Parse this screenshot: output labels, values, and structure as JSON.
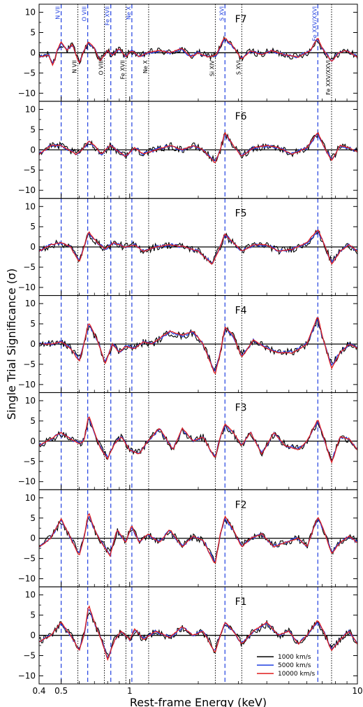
{
  "chart_data": {
    "type": "line",
    "xlabel": "Rest-frame Energy (keV)",
    "ylabel": "Single Trial Significance (σ)",
    "xscale": "log",
    "xlim": [
      0.4,
      10
    ],
    "ylim": [
      -12,
      12
    ],
    "x_ticks": [
      {
        "value": 0.4,
        "label": "0.4"
      },
      {
        "value": 0.5,
        "label": "0.5"
      },
      {
        "value": 1,
        "label": "1"
      },
      {
        "value": 10,
        "label": "10"
      }
    ],
    "y_ticks": [
      10,
      5,
      0,
      -5,
      -10
    ],
    "legend": {
      "placement": "bottom-right",
      "entries": [
        {
          "label": "1000 km/s",
          "color": "#000000"
        },
        {
          "label": "5000 km/s",
          "color": "#1f3fe0"
        },
        {
          "label": "10000 km/s",
          "color": "#e01f1f"
        }
      ]
    },
    "emission_lines": [
      {
        "label": "N VII",
        "energy": 0.5
      },
      {
        "label": "O VIII",
        "energy": 0.654
      },
      {
        "label": "Fe XVII",
        "energy": 0.826
      },
      {
        "label": "Ne X",
        "energy": 1.022
      },
      {
        "label": "S XVI",
        "energy": 2.62
      },
      {
        "label": "Fe XXV/XXVI",
        "energy": 6.7
      }
    ],
    "absorption_lines": [
      {
        "label": "N VII",
        "energy": 0.592
      },
      {
        "label": "O VIII",
        "energy": 0.774
      },
      {
        "label": "Fe XVII",
        "energy": 0.962
      },
      {
        "label": "Ne X",
        "energy": 1.211
      },
      {
        "label": "Si XIV",
        "energy": 2.377
      },
      {
        "label": "S XVI",
        "energy": 3.106
      },
      {
        "label": "Fe XXV/XXVI",
        "energy": 7.7
      }
    ],
    "panels": [
      {
        "name": "F7",
        "curve_points": [
          [
            0.4,
            -1
          ],
          [
            0.44,
            -0.5
          ],
          [
            0.46,
            -3
          ],
          [
            0.48,
            0.5
          ],
          [
            0.5,
            2.5
          ],
          [
            0.53,
            0.5
          ],
          [
            0.56,
            2
          ],
          [
            0.6,
            -2.5
          ],
          [
            0.63,
            0.5
          ],
          [
            0.66,
            2.5
          ],
          [
            0.7,
            1
          ],
          [
            0.74,
            -2
          ],
          [
            0.8,
            0.5
          ],
          [
            0.84,
            -0.5
          ],
          [
            0.9,
            1
          ],
          [
            0.96,
            -1
          ],
          [
            1.02,
            0.5
          ],
          [
            1.1,
            -1
          ],
          [
            1.2,
            0
          ],
          [
            1.35,
            0.5
          ],
          [
            1.5,
            0
          ],
          [
            1.7,
            1
          ],
          [
            1.85,
            -1
          ],
          [
            2.0,
            0
          ],
          [
            2.2,
            -1
          ],
          [
            2.4,
            -0.5
          ],
          [
            2.6,
            3.5
          ],
          [
            2.8,
            2
          ],
          [
            3.1,
            -1.5
          ],
          [
            3.4,
            0.5
          ],
          [
            3.8,
            -0.5
          ],
          [
            4.2,
            0.5
          ],
          [
            4.8,
            -0.5
          ],
          [
            5.5,
            -1
          ],
          [
            6.2,
            0.5
          ],
          [
            6.7,
            3.5
          ],
          [
            7.0,
            1
          ],
          [
            7.7,
            -2
          ],
          [
            8.3,
            0
          ],
          [
            9,
            0.5
          ],
          [
            10,
            -1
          ]
        ]
      },
      {
        "name": "F6",
        "curve_points": [
          [
            0.4,
            -1
          ],
          [
            0.45,
            1
          ],
          [
            0.5,
            1
          ],
          [
            0.54,
            0
          ],
          [
            0.58,
            -1
          ],
          [
            0.62,
            0
          ],
          [
            0.66,
            2
          ],
          [
            0.7,
            1
          ],
          [
            0.75,
            -1
          ],
          [
            0.82,
            1
          ],
          [
            0.9,
            -0.5
          ],
          [
            0.96,
            -1.5
          ],
          [
            1.05,
            0.5
          ],
          [
            1.15,
            -1
          ],
          [
            1.3,
            0
          ],
          [
            1.5,
            1
          ],
          [
            1.7,
            0
          ],
          [
            1.9,
            1
          ],
          [
            2.1,
            0
          ],
          [
            2.37,
            -3
          ],
          [
            2.5,
            0
          ],
          [
            2.62,
            4
          ],
          [
            2.85,
            1
          ],
          [
            3.1,
            -1.5
          ],
          [
            3.5,
            0.5
          ],
          [
            4.0,
            1
          ],
          [
            4.5,
            0.5
          ],
          [
            5.2,
            -1
          ],
          [
            6.0,
            0.5
          ],
          [
            6.7,
            4
          ],
          [
            7.1,
            1
          ],
          [
            7.7,
            -2.5
          ],
          [
            8.4,
            1
          ],
          [
            9.2,
            0.5
          ],
          [
            10,
            -0.5
          ]
        ]
      },
      {
        "name": "F5",
        "curve_points": [
          [
            0.4,
            -1
          ],
          [
            0.45,
            0.5
          ],
          [
            0.5,
            1
          ],
          [
            0.55,
            0
          ],
          [
            0.6,
            -3.5
          ],
          [
            0.63,
            0
          ],
          [
            0.66,
            3.5
          ],
          [
            0.72,
            1
          ],
          [
            0.78,
            -0.5
          ],
          [
            0.85,
            1
          ],
          [
            0.95,
            0
          ],
          [
            1.05,
            0.5
          ],
          [
            1.15,
            -1
          ],
          [
            1.3,
            0
          ],
          [
            1.5,
            0.5
          ],
          [
            1.75,
            0
          ],
          [
            2.0,
            -1
          ],
          [
            2.3,
            -4
          ],
          [
            2.45,
            -1
          ],
          [
            2.62,
            3
          ],
          [
            2.85,
            1
          ],
          [
            3.1,
            -1
          ],
          [
            3.5,
            0.5
          ],
          [
            4.0,
            0.5
          ],
          [
            4.5,
            -1
          ],
          [
            5.2,
            -0.5
          ],
          [
            6.0,
            1
          ],
          [
            6.7,
            4
          ],
          [
            7.1,
            1
          ],
          [
            7.7,
            -4
          ],
          [
            8.4,
            -1
          ],
          [
            9.2,
            0.5
          ],
          [
            10,
            -1
          ]
        ]
      },
      {
        "name": "F4",
        "curve_points": [
          [
            0.4,
            0
          ],
          [
            0.45,
            0
          ],
          [
            0.5,
            0.5
          ],
          [
            0.55,
            -1
          ],
          [
            0.6,
            -4
          ],
          [
            0.63,
            0
          ],
          [
            0.66,
            5
          ],
          [
            0.72,
            1
          ],
          [
            0.78,
            -4.5
          ],
          [
            0.84,
            0
          ],
          [
            0.9,
            -2
          ],
          [
            0.96,
            -0.5
          ],
          [
            1.05,
            -1
          ],
          [
            1.15,
            0.5
          ],
          [
            1.25,
            0
          ],
          [
            1.5,
            3
          ],
          [
            1.7,
            2
          ],
          [
            1.9,
            3
          ],
          [
            2.1,
            0
          ],
          [
            2.37,
            -7
          ],
          [
            2.5,
            -2
          ],
          [
            2.62,
            4
          ],
          [
            2.85,
            2
          ],
          [
            3.1,
            -3
          ],
          [
            3.5,
            1
          ],
          [
            4.0,
            -1
          ],
          [
            4.5,
            -2
          ],
          [
            5.2,
            -2
          ],
          [
            6.0,
            0
          ],
          [
            6.7,
            6.5
          ],
          [
            7.0,
            2
          ],
          [
            7.7,
            -5.5
          ],
          [
            8.4,
            -2
          ],
          [
            9.2,
            0
          ],
          [
            10,
            -1
          ]
        ]
      },
      {
        "name": "F3",
        "curve_points": [
          [
            0.4,
            -1
          ],
          [
            0.45,
            0.5
          ],
          [
            0.5,
            2
          ],
          [
            0.55,
            0.5
          ],
          [
            0.6,
            -0.5
          ],
          [
            0.63,
            0
          ],
          [
            0.66,
            6
          ],
          [
            0.7,
            2
          ],
          [
            0.75,
            -2
          ],
          [
            0.8,
            -4
          ],
          [
            0.86,
            -0.5
          ],
          [
            0.92,
            1
          ],
          [
            1.0,
            -2
          ],
          [
            1.1,
            -3
          ],
          [
            1.2,
            0
          ],
          [
            1.35,
            3
          ],
          [
            1.55,
            -2
          ],
          [
            1.7,
            3
          ],
          [
            1.9,
            0
          ],
          [
            2.1,
            1
          ],
          [
            2.37,
            -4
          ],
          [
            2.5,
            1
          ],
          [
            2.62,
            4
          ],
          [
            2.85,
            2
          ],
          [
            3.1,
            -1
          ],
          [
            3.4,
            2
          ],
          [
            3.8,
            -3
          ],
          [
            4.3,
            2
          ],
          [
            4.8,
            -1
          ],
          [
            5.5,
            -2
          ],
          [
            6.0,
            0
          ],
          [
            6.7,
            5
          ],
          [
            7.1,
            1
          ],
          [
            7.7,
            -5
          ],
          [
            8.4,
            1
          ],
          [
            9.2,
            0.5
          ],
          [
            10,
            -2
          ]
        ]
      },
      {
        "name": "F2",
        "curve_points": [
          [
            0.4,
            -2
          ],
          [
            0.45,
            0
          ],
          [
            0.5,
            4.5
          ],
          [
            0.55,
            0
          ],
          [
            0.6,
            -4
          ],
          [
            0.63,
            0
          ],
          [
            0.66,
            6
          ],
          [
            0.7,
            2
          ],
          [
            0.75,
            -1
          ],
          [
            0.82,
            -4
          ],
          [
            0.88,
            2
          ],
          [
            0.96,
            -1
          ],
          [
            1.02,
            3
          ],
          [
            1.1,
            -1
          ],
          [
            1.2,
            1
          ],
          [
            1.35,
            -1
          ],
          [
            1.5,
            2
          ],
          [
            1.7,
            -2
          ],
          [
            1.9,
            0.5
          ],
          [
            2.1,
            -0.5
          ],
          [
            2.37,
            -6
          ],
          [
            2.5,
            1
          ],
          [
            2.62,
            5
          ],
          [
            2.85,
            2
          ],
          [
            3.1,
            -2
          ],
          [
            3.4,
            0
          ],
          [
            3.8,
            1
          ],
          [
            4.3,
            -2
          ],
          [
            4.8,
            -1
          ],
          [
            5.5,
            0
          ],
          [
            6.0,
            -2
          ],
          [
            6.7,
            5
          ],
          [
            7.1,
            2
          ],
          [
            7.7,
            -3.5
          ],
          [
            8.4,
            -1
          ],
          [
            9.2,
            0.5
          ],
          [
            10,
            -1
          ]
        ]
      },
      {
        "name": "F1",
        "curve_points": [
          [
            0.4,
            -1.5
          ],
          [
            0.45,
            0
          ],
          [
            0.5,
            3
          ],
          [
            0.55,
            0
          ],
          [
            0.6,
            -3.5
          ],
          [
            0.63,
            0
          ],
          [
            0.66,
            7
          ],
          [
            0.7,
            3
          ],
          [
            0.75,
            -1
          ],
          [
            0.8,
            -5.5
          ],
          [
            0.86,
            -1
          ],
          [
            0.92,
            1
          ],
          [
            1.0,
            -1
          ],
          [
            1.05,
            1.5
          ],
          [
            1.15,
            -1
          ],
          [
            1.3,
            1
          ],
          [
            1.5,
            -0.5
          ],
          [
            1.7,
            2
          ],
          [
            1.9,
            0
          ],
          [
            2.1,
            1
          ],
          [
            2.37,
            -4
          ],
          [
            2.5,
            0
          ],
          [
            2.62,
            3
          ],
          [
            2.85,
            1
          ],
          [
            3.1,
            -2
          ],
          [
            3.5,
            1
          ],
          [
            4.0,
            3
          ],
          [
            4.5,
            0
          ],
          [
            5.0,
            1
          ],
          [
            5.5,
            -2
          ],
          [
            6.0,
            0
          ],
          [
            6.7,
            3.5
          ],
          [
            7.1,
            1
          ],
          [
            7.7,
            -3.5
          ],
          [
            8.4,
            -1
          ],
          [
            9.2,
            1
          ],
          [
            10,
            -2
          ]
        ]
      }
    ]
  }
}
